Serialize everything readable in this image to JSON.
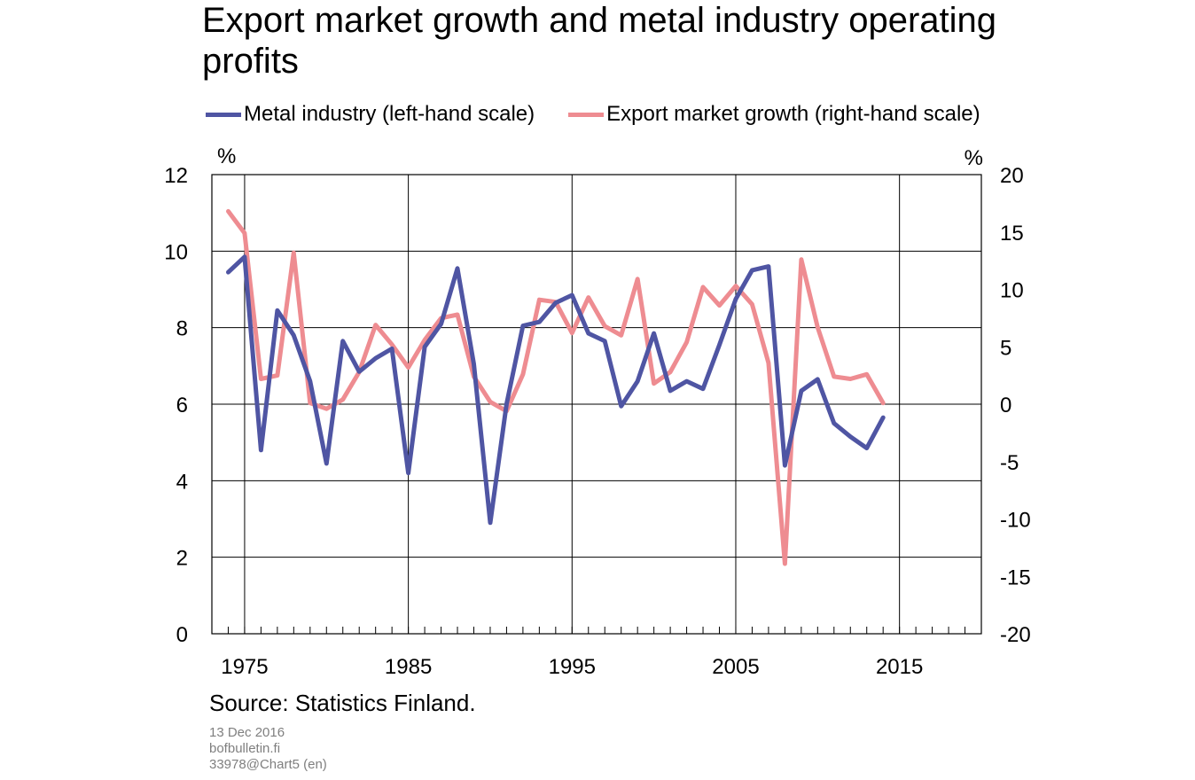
{
  "title": "Export market growth and metal industry operating profits",
  "legend": [
    {
      "label": "Metal industry (left-hand scale)",
      "color": "#4f55a3"
    },
    {
      "label": "Export market growth (right-hand scale)",
      "color": "#ee8c91"
    }
  ],
  "source": "Source: Statistics Finland.",
  "meta": {
    "date": "13 Dec 2016",
    "site": "bofbulletin.fi",
    "code": "33978@Chart5 (en)"
  },
  "chart_data": {
    "type": "line",
    "xlim": [
      1973,
      2020
    ],
    "x_ticks": [
      1975,
      1985,
      1995,
      2005,
      2015
    ],
    "y_left": {
      "unit": "%",
      "lim": [
        0,
        12
      ],
      "ticks": [
        0,
        2,
        4,
        6,
        8,
        10,
        12
      ]
    },
    "y_right": {
      "unit": "%",
      "lim": [
        -20,
        20
      ],
      "ticks": [
        -20,
        -15,
        -10,
        -5,
        0,
        5,
        10,
        15,
        20
      ]
    },
    "grid": true,
    "legend_position": "top",
    "series": [
      {
        "name": "Metal industry (left-hand scale)",
        "axis": "left",
        "color": "#4f55a3",
        "x": [
          1974,
          1975,
          1976,
          1977,
          1978,
          1979,
          1980,
          1981,
          1982,
          1983,
          1984,
          1985,
          1986,
          1987,
          1988,
          1989,
          1990,
          1991,
          1992,
          1993,
          1994,
          1995,
          1996,
          1997,
          1998,
          1999,
          2000,
          2001,
          2002,
          2003,
          2004,
          2005,
          2006,
          2007,
          2008,
          2009,
          2010,
          2011,
          2012,
          2013,
          2014
        ],
        "values": [
          9.45,
          9.85,
          4.8,
          8.45,
          7.8,
          6.6,
          4.45,
          7.65,
          6.85,
          7.2,
          7.45,
          4.2,
          7.5,
          8.1,
          9.55,
          7.05,
          2.9,
          6.0,
          8.05,
          8.15,
          8.65,
          8.85,
          7.85,
          7.65,
          5.95,
          6.6,
          7.85,
          6.35,
          6.6,
          6.4,
          7.55,
          8.75,
          9.5,
          9.6,
          4.4,
          6.35,
          6.65,
          5.5,
          5.15,
          4.85,
          5.65
        ]
      },
      {
        "name": "Export market growth (right-hand scale)",
        "axis": "right",
        "color": "#ee8c91",
        "x": [
          1974,
          1975,
          1976,
          1977,
          1978,
          1979,
          1980,
          1981,
          1982,
          1983,
          1984,
          1985,
          1986,
          1987,
          1988,
          1989,
          1990,
          1991,
          1992,
          1993,
          1994,
          1995,
          1996,
          1997,
          1998,
          1999,
          2000,
          2001,
          2002,
          2003,
          2004,
          2005,
          2006,
          2007,
          2008,
          2009,
          2010,
          2011,
          2012,
          2013,
          2014
        ],
        "values": [
          16.8,
          14.9,
          2.2,
          2.5,
          13.2,
          0.1,
          -0.4,
          0.4,
          2.8,
          6.9,
          5.2,
          3.2,
          5.6,
          7.5,
          7.8,
          2.4,
          0.2,
          -0.6,
          2.6,
          9.1,
          8.9,
          6.2,
          9.3,
          6.8,
          6.0,
          10.9,
          1.8,
          2.8,
          5.4,
          10.2,
          8.6,
          10.3,
          8.7,
          3.6,
          -13.9,
          12.6,
          6.7,
          2.4,
          2.2,
          2.6,
          0.1
        ]
      }
    ]
  }
}
